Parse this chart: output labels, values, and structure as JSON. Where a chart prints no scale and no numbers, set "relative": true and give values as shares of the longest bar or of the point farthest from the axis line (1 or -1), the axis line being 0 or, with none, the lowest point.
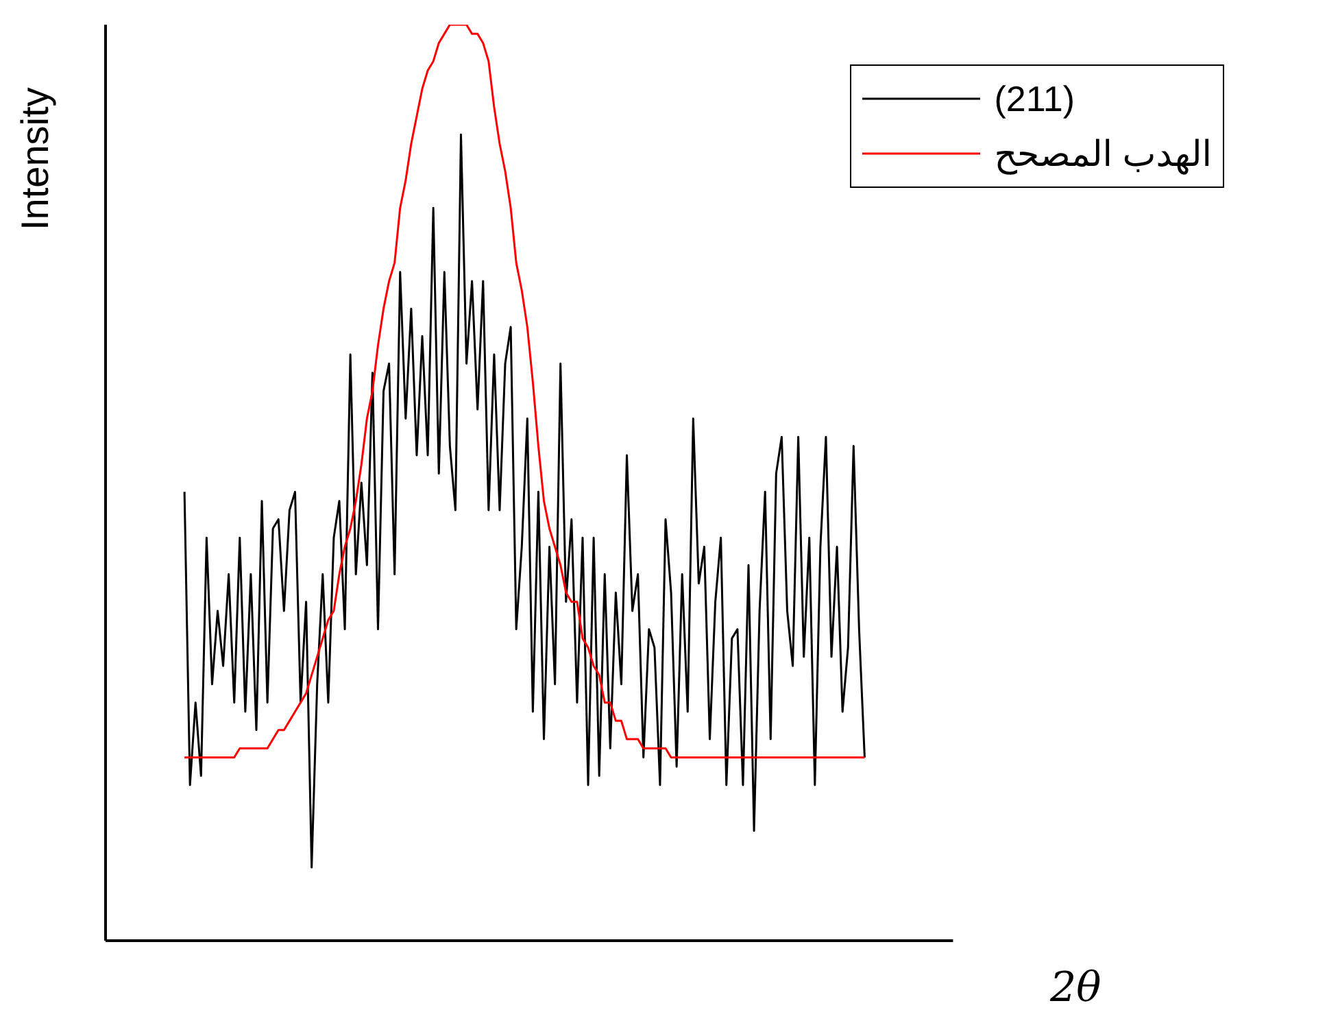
{
  "chart_data": {
    "type": "line",
    "xlabel": "2θ",
    "ylabel": "Intensity",
    "relative": true,
    "legend": "top right",
    "categories": [
      null,
      null,
      null,
      null,
      null,
      null,
      null,
      null,
      null,
      null,
      null,
      null,
      null,
      null,
      null,
      null,
      null,
      null,
      null,
      null,
      null,
      null,
      null,
      null,
      null,
      null,
      null,
      null,
      null,
      null,
      null,
      null,
      null,
      null,
      null,
      null,
      null,
      null,
      null,
      null,
      null,
      null,
      null,
      null,
      null,
      null,
      null,
      null,
      null,
      null,
      null,
      null,
      null,
      null,
      null,
      null,
      null,
      null,
      null,
      null,
      null,
      null,
      null,
      null,
      null,
      null,
      null,
      null,
      null,
      null,
      null,
      null,
      null,
      null,
      null,
      null,
      null,
      null,
      null,
      null,
      null,
      null,
      null,
      null,
      null,
      null,
      null,
      null,
      null,
      null,
      null,
      null,
      null,
      null,
      null,
      null,
      null,
      null,
      null,
      null,
      null,
      null,
      null,
      null,
      null,
      null,
      null,
      null,
      null,
      null,
      null,
      null,
      null,
      null,
      null,
      null,
      null,
      null,
      null,
      null,
      null,
      null,
      null,
      null
    ],
    "series": [
      {
        "name": "(211)",
        "color": "#000000",
        "values": [
          0.49,
          0.17,
          0.26,
          0.18,
          0.44,
          0.28,
          0.36,
          0.3,
          0.4,
          0.26,
          0.44,
          0.25,
          0.4,
          0.23,
          0.48,
          0.26,
          0.45,
          0.46,
          0.36,
          0.47,
          0.49,
          0.26,
          0.37,
          0.08,
          0.28,
          0.4,
          0.26,
          0.44,
          0.48,
          0.34,
          0.64,
          0.4,
          0.5,
          0.41,
          0.62,
          0.34,
          0.6,
          0.63,
          0.4,
          0.73,
          0.57,
          0.69,
          0.53,
          0.66,
          0.53,
          0.8,
          0.51,
          0.73,
          0.54,
          0.47,
          0.88,
          0.63,
          0.72,
          0.58,
          0.72,
          0.47,
          0.64,
          0.47,
          0.63,
          0.67,
          0.34,
          0.43,
          0.57,
          0.25,
          0.49,
          0.22,
          0.43,
          0.28,
          0.63,
          0.37,
          0.46,
          0.26,
          0.44,
          0.17,
          0.44,
          0.18,
          0.4,
          0.21,
          0.38,
          0.28,
          0.53,
          0.36,
          0.4,
          0.2,
          0.34,
          0.32,
          0.17,
          0.46,
          0.38,
          0.19,
          0.4,
          0.25,
          0.57,
          0.39,
          0.43,
          0.22,
          0.37,
          0.44,
          0.17,
          0.33,
          0.34,
          0.17,
          0.41,
          0.12,
          0.36,
          0.49,
          0.22,
          0.51,
          0.55,
          0.36,
          0.3,
          0.55,
          0.31,
          0.44,
          0.17,
          0.43,
          0.55,
          0.31,
          0.43,
          0.25,
          0.32,
          0.54,
          0.34,
          0.2
        ]
      },
      {
        "name": "الهدب المصحح",
        "color": "#ff0000",
        "values": [
          0.2,
          0.2,
          0.2,
          0.2,
          0.2,
          0.2,
          0.2,
          0.2,
          0.2,
          0.2,
          0.21,
          0.21,
          0.21,
          0.21,
          0.21,
          0.21,
          0.22,
          0.23,
          0.23,
          0.24,
          0.25,
          0.26,
          0.27,
          0.29,
          0.31,
          0.33,
          0.35,
          0.36,
          0.4,
          0.43,
          0.45,
          0.48,
          0.52,
          0.57,
          0.6,
          0.65,
          0.69,
          0.72,
          0.74,
          0.8,
          0.83,
          0.87,
          0.9,
          0.93,
          0.95,
          0.96,
          0.98,
          0.99,
          1.0,
          1.0,
          1.0,
          1.0,
          0.99,
          0.99,
          0.98,
          0.96,
          0.91,
          0.87,
          0.84,
          0.8,
          0.74,
          0.71,
          0.67,
          0.61,
          0.54,
          0.48,
          0.45,
          0.43,
          0.41,
          0.38,
          0.37,
          0.37,
          0.33,
          0.32,
          0.3,
          0.29,
          0.26,
          0.26,
          0.24,
          0.24,
          0.22,
          0.22,
          0.22,
          0.21,
          0.21,
          0.21,
          0.21,
          0.21,
          0.2,
          0.2,
          0.2,
          0.2,
          0.2,
          0.2,
          0.2,
          0.2,
          0.2,
          0.2,
          0.2,
          0.2,
          0.2,
          0.2,
          0.2,
          0.2,
          0.2,
          0.2,
          0.2,
          0.2,
          0.2,
          0.2,
          0.2,
          0.2,
          0.2,
          0.2,
          0.2,
          0.2,
          0.2,
          0.2,
          0.2,
          0.2,
          0.2,
          0.2,
          0.2,
          0.2
        ]
      }
    ]
  }
}
